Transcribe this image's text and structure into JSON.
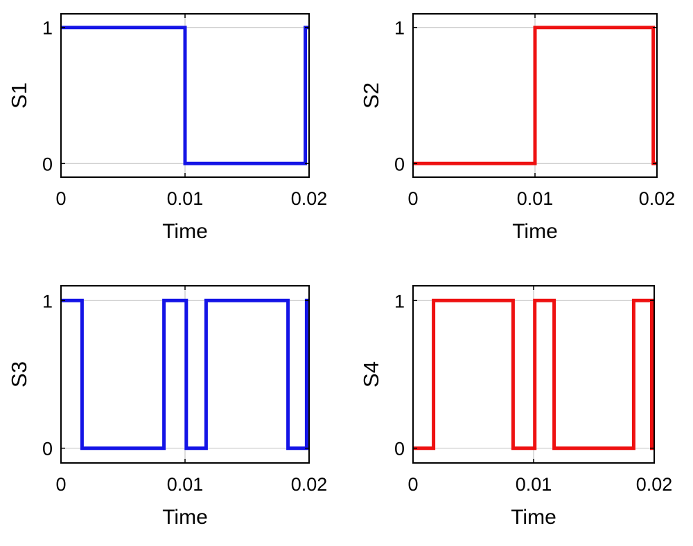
{
  "chart_data": [
    {
      "type": "line",
      "ylabel": "S1",
      "xlabel": "Time",
      "color": "#1414e6",
      "xlim": [
        0,
        0.02
      ],
      "ylim": [
        -0.1,
        1.1
      ],
      "xticks": [
        0,
        0.01,
        0.02
      ],
      "xtick_labels": [
        "0",
        "0.01",
        "0.02"
      ],
      "yticks": [
        0,
        1
      ],
      "ytick_labels": [
        "0",
        "1"
      ],
      "grid": true,
      "x": [
        0,
        0.01,
        0.01,
        0.0197,
        0.0197,
        0.02
      ],
      "y": [
        1,
        1,
        0,
        0,
        1,
        1
      ]
    },
    {
      "type": "line",
      "ylabel": "S2",
      "xlabel": "Time",
      "color": "#ee1111",
      "xlim": [
        0,
        0.02
      ],
      "ylim": [
        -0.1,
        1.1
      ],
      "xticks": [
        0,
        0.01,
        0.02
      ],
      "xtick_labels": [
        "0",
        "0.01",
        "0.02"
      ],
      "yticks": [
        0,
        1
      ],
      "ytick_labels": [
        "0",
        "1"
      ],
      "grid": true,
      "x": [
        0,
        0.01,
        0.01,
        0.0197,
        0.0197,
        0.02
      ],
      "y": [
        0,
        0,
        1,
        1,
        0,
        0
      ]
    },
    {
      "type": "line",
      "ylabel": "S3",
      "xlabel": "Time",
      "color": "#1414e6",
      "xlim": [
        0,
        0.02
      ],
      "ylim": [
        -0.1,
        1.1
      ],
      "xticks": [
        0,
        0.01,
        0.02
      ],
      "xtick_labels": [
        "0",
        "0.01",
        "0.02"
      ],
      "yticks": [
        0,
        1
      ],
      "ytick_labels": [
        "0",
        "1"
      ],
      "grid": true,
      "x": [
        0,
        0.0017,
        0.0017,
        0.0083,
        0.0083,
        0.0101,
        0.0101,
        0.0117,
        0.0117,
        0.0183,
        0.0183,
        0.0198,
        0.0198,
        0.02
      ],
      "y": [
        1,
        1,
        0,
        0,
        1,
        1,
        0,
        0,
        1,
        1,
        0,
        0,
        1,
        1
      ]
    },
    {
      "type": "line",
      "ylabel": "S4",
      "xlabel": "Time",
      "color": "#ee1111",
      "xlim": [
        0,
        0.02
      ],
      "ylim": [
        -0.1,
        1.1
      ],
      "xticks": [
        0,
        0.01,
        0.02
      ],
      "xtick_labels": [
        "0",
        "0.01",
        "0.02"
      ],
      "yticks": [
        0,
        1
      ],
      "ytick_labels": [
        "0",
        "1"
      ],
      "grid": true,
      "x": [
        0,
        0.0017,
        0.0017,
        0.0083,
        0.0083,
        0.0101,
        0.0101,
        0.0117,
        0.0117,
        0.0183,
        0.0183,
        0.0198,
        0.0198,
        0.02
      ],
      "y": [
        0,
        0,
        1,
        1,
        0,
        0,
        1,
        1,
        0,
        0,
        1,
        1,
        0,
        0
      ]
    }
  ]
}
